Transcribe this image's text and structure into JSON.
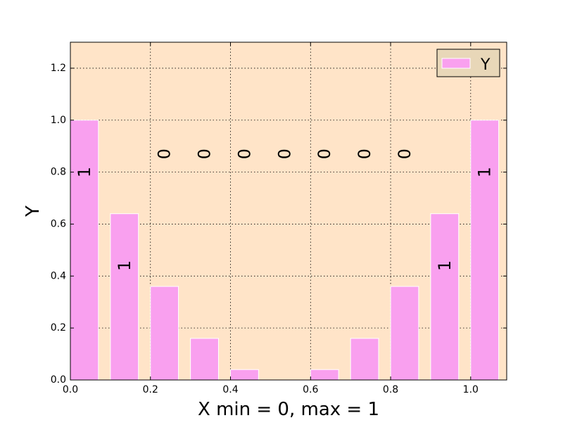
{
  "chart_data": {
    "type": "bar",
    "xlabel": "X min = 0, max = 1",
    "ylabel": "Y",
    "xlim": [
      0.0,
      1.09
    ],
    "ylim": [
      0.0,
      1.3
    ],
    "bar_width": 0.07,
    "x_ticks": [
      0.0,
      0.2,
      0.4,
      0.6,
      0.8,
      1.0
    ],
    "x_tick_labels": [
      "0.0",
      "0.2",
      "0.4",
      "0.6",
      "0.8",
      "1.0"
    ],
    "y_ticks": [
      0.0,
      0.2,
      0.4,
      0.6,
      0.8,
      1.0,
      1.2
    ],
    "y_tick_labels": [
      "0.0",
      "0.2",
      "0.4",
      "0.6",
      "0.8",
      "1.0",
      "1.2"
    ],
    "grid": true,
    "legend_position": "top-right",
    "background_color": "#ffe4c8",
    "bar_color": "#f9a0ef",
    "series": [
      {
        "name": "Y",
        "x": [
          0.0,
          0.1,
          0.2,
          0.3,
          0.4,
          0.5,
          0.6,
          0.7,
          0.8,
          0.9,
          1.0
        ],
        "values": [
          1.0,
          0.64,
          0.36,
          0.16,
          0.04,
          0.0,
          0.04,
          0.16,
          0.36,
          0.64,
          1.0
        ]
      }
    ],
    "annotations": [
      {
        "text": "1",
        "x": 0.035,
        "y": 0.8
      },
      {
        "text": "1",
        "x": 0.135,
        "y": 0.44
      },
      {
        "text": "0",
        "x": 0.235,
        "y": 0.87
      },
      {
        "text": "0",
        "x": 0.335,
        "y": 0.87
      },
      {
        "text": "0",
        "x": 0.435,
        "y": 0.87
      },
      {
        "text": "0",
        "x": 0.535,
        "y": 0.87
      },
      {
        "text": "0",
        "x": 0.635,
        "y": 0.87
      },
      {
        "text": "0",
        "x": 0.735,
        "y": 0.87
      },
      {
        "text": "0",
        "x": 0.835,
        "y": 0.87
      },
      {
        "text": "1",
        "x": 0.935,
        "y": 0.44
      },
      {
        "text": "1",
        "x": 1.035,
        "y": 0.8
      }
    ]
  }
}
